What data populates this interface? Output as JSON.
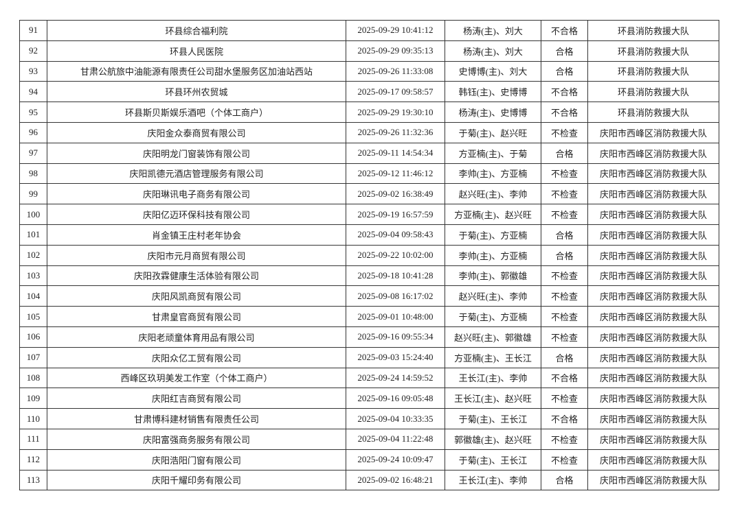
{
  "rows": [
    [
      "91",
      "环县综合福利院",
      "2025-09-29 10:41:12",
      "杨涛(主)、刘大",
      "不合格",
      "环县消防救援大队"
    ],
    [
      "92",
      "环县人民医院",
      "2025-09-29 09:35:13",
      "杨涛(主)、刘大",
      "合格",
      "环县消防救援大队"
    ],
    [
      "93",
      "甘肃公航旅中油能源有限责任公司甜水堡服务区加油站西站",
      "2025-09-26 11:33:08",
      "史博博(主)、刘大",
      "合格",
      "环县消防救援大队"
    ],
    [
      "94",
      "环县环州农贸城",
      "2025-09-17 09:58:57",
      "韩钰(主)、史博博",
      "不合格",
      "环县消防救援大队"
    ],
    [
      "95",
      "环县斯贝斯娱乐酒吧（个体工商户）",
      "2025-09-29 19:30:10",
      "杨涛(主)、史博博",
      "不合格",
      "环县消防救援大队"
    ],
    [
      "96",
      "庆阳金众泰商贸有限公司",
      "2025-09-26 11:32:36",
      "于菊(主)、赵兴旺",
      "不检查",
      "庆阳市西峰区消防救援大队"
    ],
    [
      "97",
      "庆阳明龙门窗装饰有限公司",
      "2025-09-11 14:54:34",
      "方亚楠(主)、于菊",
      "合格",
      "庆阳市西峰区消防救援大队"
    ],
    [
      "98",
      "庆阳凯德元酒店管理服务有限公司",
      "2025-09-12 11:46:12",
      "李帅(主)、方亚楠",
      "不检查",
      "庆阳市西峰区消防救援大队"
    ],
    [
      "99",
      "庆阳琳讯电子商务有限公司",
      "2025-09-02 16:38:49",
      "赵兴旺(主)、李帅",
      "不检查",
      "庆阳市西峰区消防救援大队"
    ],
    [
      "100",
      "庆阳亿迈环保科技有限公司",
      "2025-09-19 16:57:59",
      "方亚楠(主)、赵兴旺",
      "不检查",
      "庆阳市西峰区消防救援大队"
    ],
    [
      "101",
      "肖金镇王庄村老年协会",
      "2025-09-04 09:58:43",
      "于菊(主)、方亚楠",
      "合格",
      "庆阳市西峰区消防救援大队"
    ],
    [
      "102",
      "庆阳市元月商贸有限公司",
      "2025-09-22 10:02:00",
      "李帅(主)、方亚楠",
      "合格",
      "庆阳市西峰区消防救援大队"
    ],
    [
      "103",
      "庆阳孜霖健康生活体验有限公司",
      "2025-09-18 10:41:28",
      "李帅(主)、郭徽雄",
      "不检查",
      "庆阳市西峰区消防救援大队"
    ],
    [
      "104",
      "庆阳风凯商贸有限公司",
      "2025-09-08 16:17:02",
      "赵兴旺(主)、李帅",
      "不检查",
      "庆阳市西峰区消防救援大队"
    ],
    [
      "105",
      "甘肃皇官商贸有限公司",
      "2025-09-01 10:48:00",
      "于菊(主)、方亚楠",
      "不检查",
      "庆阳市西峰区消防救援大队"
    ],
    [
      "106",
      "庆阳老顽童体育用品有限公司",
      "2025-09-16 09:55:34",
      "赵兴旺(主)、郭徽雄",
      "不检查",
      "庆阳市西峰区消防救援大队"
    ],
    [
      "107",
      "庆阳众亿工贸有限公司",
      "2025-09-03 15:24:40",
      "方亚楠(主)、王长江",
      "合格",
      "庆阳市西峰区消防救援大队"
    ],
    [
      "108",
      "西峰区玖玥美发工作室（个体工商户）",
      "2025-09-24 14:59:52",
      "王长江(主)、李帅",
      "不合格",
      "庆阳市西峰区消防救援大队"
    ],
    [
      "109",
      "庆阳红吉商贸有限公司",
      "2025-09-16 09:05:48",
      "王长江(主)、赵兴旺",
      "不检查",
      "庆阳市西峰区消防救援大队"
    ],
    [
      "110",
      "甘肃博科建材销售有限责任公司",
      "2025-09-04 10:33:35",
      "于菊(主)、王长江",
      "不合格",
      "庆阳市西峰区消防救援大队"
    ],
    [
      "111",
      "庆阳富强商务服务有限公司",
      "2025-09-04 11:22:48",
      "郭徽雄(主)、赵兴旺",
      "不检查",
      "庆阳市西峰区消防救援大队"
    ],
    [
      "112",
      "庆阳浩阳门窗有限公司",
      "2025-09-24 10:09:47",
      "于菊(主)、王长江",
      "不检查",
      "庆阳市西峰区消防救援大队"
    ],
    [
      "113",
      "庆阳千耀印务有限公司",
      "2025-09-02 16:48:21",
      "王长江(主)、李帅",
      "合格",
      "庆阳市西峰区消防救援大队"
    ]
  ]
}
